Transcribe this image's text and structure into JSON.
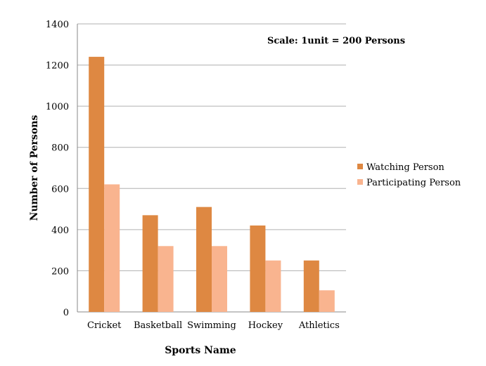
{
  "chart_data": {
    "type": "bar",
    "title": "",
    "annotation": "Scale: 1unit = 200 Persons",
    "xlabel": "Sports Name",
    "ylabel": "Number of Persons",
    "categories": [
      "Cricket",
      "Basketball",
      "Swimming",
      "Hockey",
      "Athletics"
    ],
    "series": [
      {
        "name": "Watching Person",
        "values": [
          1240,
          470,
          510,
          420,
          250
        ],
        "color": "#DE8842"
      },
      {
        "name": "Participating Person",
        "values": [
          620,
          320,
          320,
          250,
          105
        ],
        "color": "#F9B48F"
      }
    ],
    "ylim": [
      0,
      1400
    ],
    "yticks": [
      0,
      200,
      400,
      600,
      800,
      1000,
      1200,
      1400
    ],
    "grid": true,
    "legend_position": "right"
  }
}
